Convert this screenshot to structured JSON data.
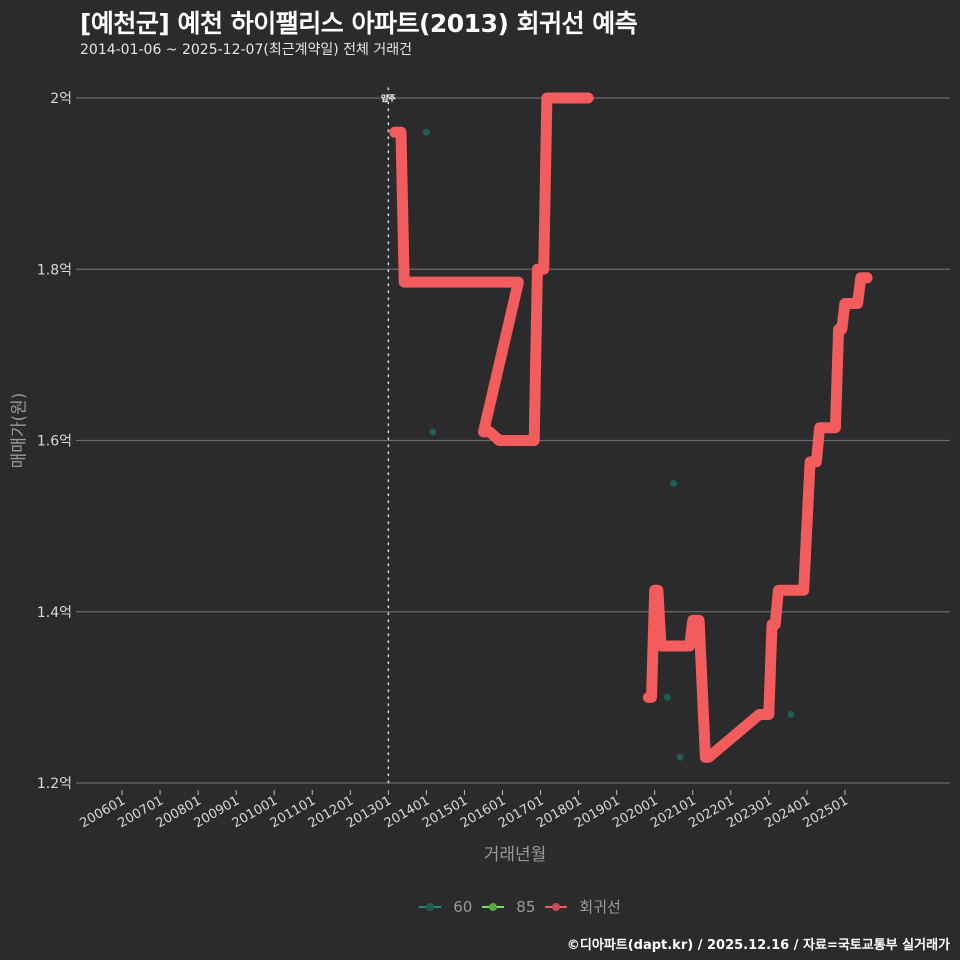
{
  "header": {
    "title": "[예천군] 예천 하이팰리스 아파트(2013) 회귀선 예측",
    "subtitle": "2014-01-06 ~ 2025-12-07(최근계약일) 전체 거래건"
  },
  "axes": {
    "ylabel": "매매가(원)",
    "xlabel": "거래년월",
    "move_in_marker": "입주"
  },
  "legend": {
    "items": [
      {
        "label": "60",
        "color": "#1f8a7a"
      },
      {
        "label": "85",
        "color": "#7ed957"
      },
      {
        "label": "회귀선",
        "color": "#f25c5c"
      }
    ]
  },
  "footer": {
    "credit": "©디아파트(dapt.kr) / 2025.12.16 / 자료=국토교통부 실거래가"
  },
  "colors": {
    "background": "#2b2a2c",
    "grid": "#6a6a6a",
    "regression": "#f25c5c",
    "scatter60": "#1f5f55"
  },
  "chart_data": {
    "type": "line",
    "title": "[예천군] 예천 하이팰리스 아파트(2013) 회귀선 예측",
    "subtitle": "2014-01-06 ~ 2025-12-07(최근계약일) 전체 거래건",
    "xlabel": "거래년월",
    "ylabel": "매매가(원)",
    "x_ticks": [
      "200601",
      "200701",
      "200801",
      "200901",
      "201001",
      "201101",
      "201201",
      "201301",
      "201401",
      "201501",
      "201601",
      "201701",
      "201801",
      "201901",
      "202001",
      "202101",
      "202201",
      "202301",
      "202401",
      "202501"
    ],
    "y_ticks": [
      "1.2억",
      "1.4억",
      "1.6억",
      "1.8억",
      "2억"
    ],
    "ylim": [
      1.2,
      2.0
    ],
    "y_unit": "억",
    "grid": true,
    "legend_position": "bottom",
    "vertical_marker": {
      "x": "201301",
      "label": "입주",
      "style": "dotted"
    },
    "series": [
      {
        "name": "회귀선",
        "kind": "step-line",
        "points": [
          {
            "x": "201303",
            "y": 1.96
          },
          {
            "x": "201305",
            "y": 1.96
          },
          {
            "x": "201306",
            "y": 1.785
          },
          {
            "x": "201606",
            "y": 1.785
          },
          {
            "x": "201507",
            "y": 1.61
          },
          {
            "x": "201509",
            "y": 1.61
          },
          {
            "x": "201512",
            "y": 1.6
          },
          {
            "x": "201611",
            "y": 1.6
          },
          {
            "x": "201612",
            "y": 1.8
          },
          {
            "x": "201702",
            "y": 1.8
          },
          {
            "x": "201703",
            "y": 2.0
          },
          {
            "x": "201804",
            "y": 2.0
          },
          {
            "x": "201911",
            "y": 1.3
          },
          {
            "x": "201912",
            "y": 1.3
          },
          {
            "x": "202001",
            "y": 1.425
          },
          {
            "x": "202002",
            "y": 1.425
          },
          {
            "x": "202003",
            "y": 1.36
          },
          {
            "x": "202012",
            "y": 1.36
          },
          {
            "x": "202101",
            "y": 1.39
          },
          {
            "x": "202103",
            "y": 1.39
          },
          {
            "x": "202105",
            "y": 1.23
          },
          {
            "x": "202106",
            "y": 1.23
          },
          {
            "x": "202210",
            "y": 1.28
          },
          {
            "x": "202301",
            "y": 1.28
          },
          {
            "x": "202302",
            "y": 1.385
          },
          {
            "x": "202303",
            "y": 1.385
          },
          {
            "x": "202304",
            "y": 1.425
          },
          {
            "x": "202312",
            "y": 1.425
          },
          {
            "x": "202402",
            "y": 1.575
          },
          {
            "x": "202404",
            "y": 1.575
          },
          {
            "x": "202405",
            "y": 1.615
          },
          {
            "x": "202410",
            "y": 1.615
          },
          {
            "x": "202411",
            "y": 1.73
          },
          {
            "x": "202412",
            "y": 1.73
          },
          {
            "x": "202501",
            "y": 1.76
          },
          {
            "x": "202505",
            "y": 1.76
          },
          {
            "x": "202506",
            "y": 1.79
          },
          {
            "x": "202508",
            "y": 1.79
          }
        ]
      },
      {
        "name": "60",
        "kind": "scatter",
        "points": [
          {
            "x": "201401",
            "y": 1.96
          },
          {
            "x": "201403",
            "y": 1.61
          },
          {
            "x": "202005",
            "y": 1.3
          },
          {
            "x": "202007",
            "y": 1.55
          },
          {
            "x": "202009",
            "y": 1.23
          },
          {
            "x": "202308",
            "y": 1.28
          },
          {
            "x": "202312",
            "y": 1.49
          }
        ]
      },
      {
        "name": "85",
        "kind": "scatter",
        "points": []
      }
    ]
  }
}
